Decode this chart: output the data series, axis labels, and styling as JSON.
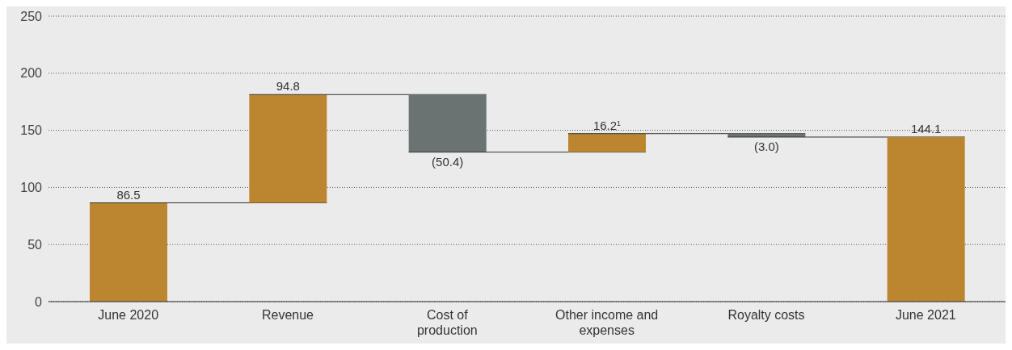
{
  "chart_data": {
    "type": "bar",
    "categories": [
      "June 2020",
      "Revenue",
      "Cost of production",
      "Other income and expenses",
      "Royalty costs",
      "June 2021"
    ],
    "values": [
      86.5,
      94.8,
      -50.4,
      16.2,
      -3.0,
      144.1
    ],
    "base": [
      0,
      86.5,
      181.3,
      130.9,
      147.1,
      0
    ],
    "colors": [
      "#bc8631",
      "#bc8631",
      "#6b7272",
      "#bc8631",
      "#6b7272",
      "#bc8631"
    ],
    "value_labels": [
      "86.5",
      "94.8",
      "(50.4)",
      "16.2$^{1}$",
      "(3.0)",
      "144.1"
    ],
    "ylim": [
      0,
      250
    ],
    "yticks": [
      0,
      50,
      100,
      150,
      200,
      250
    ],
    "grid": "y"
  }
}
